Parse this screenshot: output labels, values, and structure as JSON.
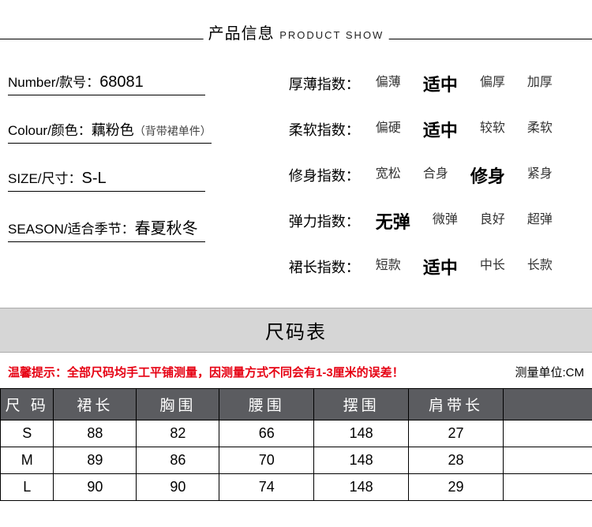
{
  "header": {
    "cn": "产品信息",
    "en": "PRODUCT SHOW"
  },
  "specs": {
    "number": {
      "label": "Number/款号：",
      "value": "68081"
    },
    "colour": {
      "label": "Colour/颜色：",
      "value": "藕粉色",
      "note": "（背带裙单件）"
    },
    "size": {
      "label": "SIZE/尺寸：",
      "value": "S-L"
    },
    "season": {
      "label": "SEASON/适合季节：",
      "value": "春夏秋冬"
    }
  },
  "attributes": [
    {
      "label": "厚薄指数：",
      "options": [
        "偏薄",
        "适中",
        "偏厚",
        "加厚"
      ],
      "selected": 1
    },
    {
      "label": "柔软指数：",
      "options": [
        "偏硬",
        "适中",
        "较软",
        "柔软"
      ],
      "selected": 1
    },
    {
      "label": "修身指数：",
      "options": [
        "宽松",
        "合身",
        "修身",
        "紧身"
      ],
      "selected": 2
    },
    {
      "label": "弹力指数：",
      "options": [
        "无弹",
        "微弹",
        "良好",
        "超弹"
      ],
      "selected": 0
    },
    {
      "label": "裙长指数：",
      "options": [
        "短款",
        "适中",
        "中长",
        "长款"
      ],
      "selected": 1
    }
  ],
  "sizeSection": {
    "title": "尺码表",
    "tip": "温馨提示：全部尺码均手工平铺测量，因测量方式不同会有1-3厘米的误差！",
    "unit": "测量单位:CM",
    "columns": [
      "尺 码",
      "裙长",
      "胸围",
      "腰围",
      "摆围",
      "肩带长",
      ""
    ],
    "rows": [
      [
        "S",
        "88",
        "82",
        "66",
        "148",
        "27",
        ""
      ],
      [
        "M",
        "89",
        "86",
        "70",
        "148",
        "28",
        ""
      ],
      [
        "L",
        "90",
        "90",
        "74",
        "148",
        "29",
        ""
      ]
    ]
  },
  "style": {
    "header_bg": "#5b5c60",
    "tip_color": "#e60012",
    "bar_bg": "#d6d6d6"
  }
}
